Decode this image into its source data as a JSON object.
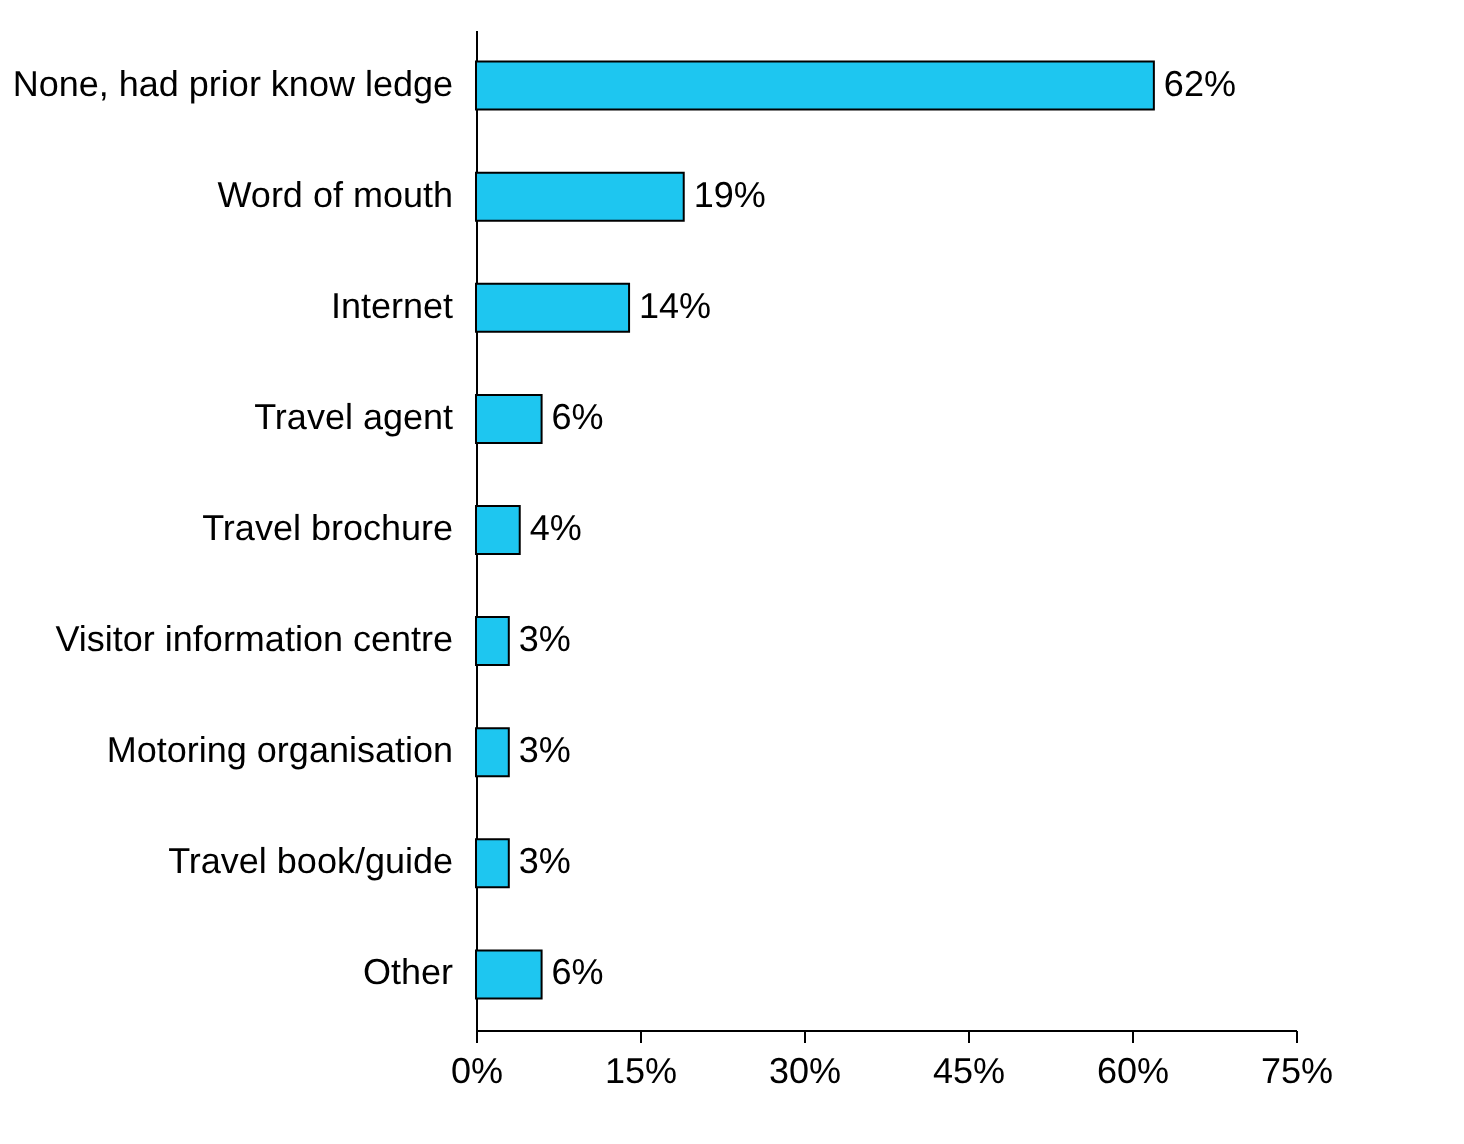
{
  "chart_data": {
    "type": "bar",
    "orientation": "horizontal",
    "categories": [
      "None, had prior know ledge",
      "Word of mouth",
      "Internet",
      "Travel agent",
      "Travel brochure",
      "Visitor information centre",
      "Motoring organisation",
      "Travel book/guide",
      "Other"
    ],
    "values": [
      62,
      19,
      14,
      6,
      4,
      3,
      3,
      3,
      6
    ],
    "value_labels": [
      "62%",
      "19%",
      "14%",
      "6%",
      "4%",
      "3%",
      "3%",
      "3%",
      "6%"
    ],
    "color": "#1ec6f0",
    "xlim": [
      0,
      75
    ],
    "xticks": [
      {
        "value": 0,
        "label": "0%"
      },
      {
        "value": 15,
        "label": "15%"
      },
      {
        "value": 30,
        "label": "30%"
      },
      {
        "value": 45,
        "label": "45%"
      },
      {
        "value": 60,
        "label": "60%"
      },
      {
        "value": 75,
        "label": "75%"
      }
    ],
    "grid": false
  }
}
